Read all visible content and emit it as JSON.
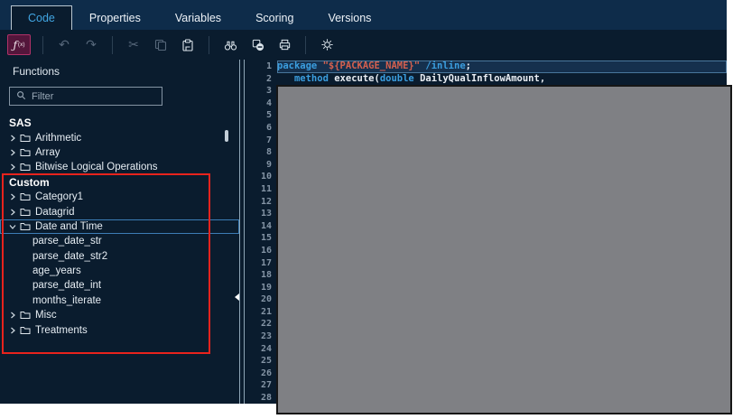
{
  "tabs": {
    "items": [
      {
        "label": "Code",
        "active": true
      },
      {
        "label": "Properties",
        "active": false
      },
      {
        "label": "Variables",
        "active": false
      },
      {
        "label": "Scoring",
        "active": false
      },
      {
        "label": "Versions",
        "active": false
      }
    ]
  },
  "toolbar": {
    "groups": [
      [
        {
          "icon": "insert-function",
          "enabled": true,
          "selected": true
        }
      ],
      [
        {
          "icon": "undo",
          "enabled": false
        },
        {
          "icon": "redo",
          "enabled": false
        }
      ],
      [
        {
          "icon": "cut",
          "enabled": false
        },
        {
          "icon": "copy",
          "enabled": false
        },
        {
          "icon": "paste",
          "enabled": true
        }
      ],
      [
        {
          "icon": "find",
          "enabled": true
        },
        {
          "icon": "hide-annotations",
          "enabled": true
        },
        {
          "icon": "print",
          "enabled": true
        }
      ],
      [
        {
          "icon": "settings",
          "enabled": true
        }
      ]
    ]
  },
  "functions_panel": {
    "title": "Functions",
    "filter_placeholder": "Filter",
    "sections": [
      {
        "name": "SAS",
        "items": [
          {
            "label": "Arithmetic",
            "state": "collapsed"
          },
          {
            "label": "Array",
            "state": "collapsed"
          },
          {
            "label": "Bitwise Logical Operations",
            "state": "collapsed"
          }
        ]
      },
      {
        "name": "Custom",
        "items": [
          {
            "label": "Category1",
            "state": "collapsed"
          },
          {
            "label": "Datagrid",
            "state": "collapsed"
          },
          {
            "label": "Date and Time",
            "state": "expanded",
            "selected": true,
            "children": [
              "parse_date_str",
              "parse_date_str2",
              "age_years",
              "parse_date_int",
              "months_iterate"
            ]
          },
          {
            "label": "Misc",
            "state": "collapsed"
          },
          {
            "label": "Treatments",
            "state": "collapsed"
          }
        ]
      }
    ]
  },
  "editor": {
    "line_count": 28,
    "lines": [
      {
        "number": 1,
        "current": true,
        "tokens": [
          {
            "t": "keyword",
            "v": "package"
          },
          {
            "t": "plain",
            "v": " "
          },
          {
            "t": "string",
            "v": "\"${PACKAGE_NAME}\""
          },
          {
            "t": "plain",
            "v": " "
          },
          {
            "t": "keyword",
            "v": "/inline"
          },
          {
            "t": "plain",
            "v": ";"
          }
        ]
      },
      {
        "number": 2,
        "current": false,
        "tokens": [
          {
            "t": "plain",
            "v": "   "
          },
          {
            "t": "keyword",
            "v": "method"
          },
          {
            "t": "plain",
            "v": " execute("
          },
          {
            "t": "keyword",
            "v": "double"
          },
          {
            "t": "plain",
            "v": " DailyQualInflowAmount,"
          }
        ]
      }
    ]
  },
  "colors": {
    "tab_active_text": "#41a5e2",
    "keyword": "#3b9edf",
    "string": "#d5604e",
    "annotation_red": "#e8231d",
    "selection_border": "#3c7cb5",
    "fx_button_bg": "#54163b",
    "fx_button_border": "#b13268",
    "redaction_gray": "#7f8084"
  }
}
